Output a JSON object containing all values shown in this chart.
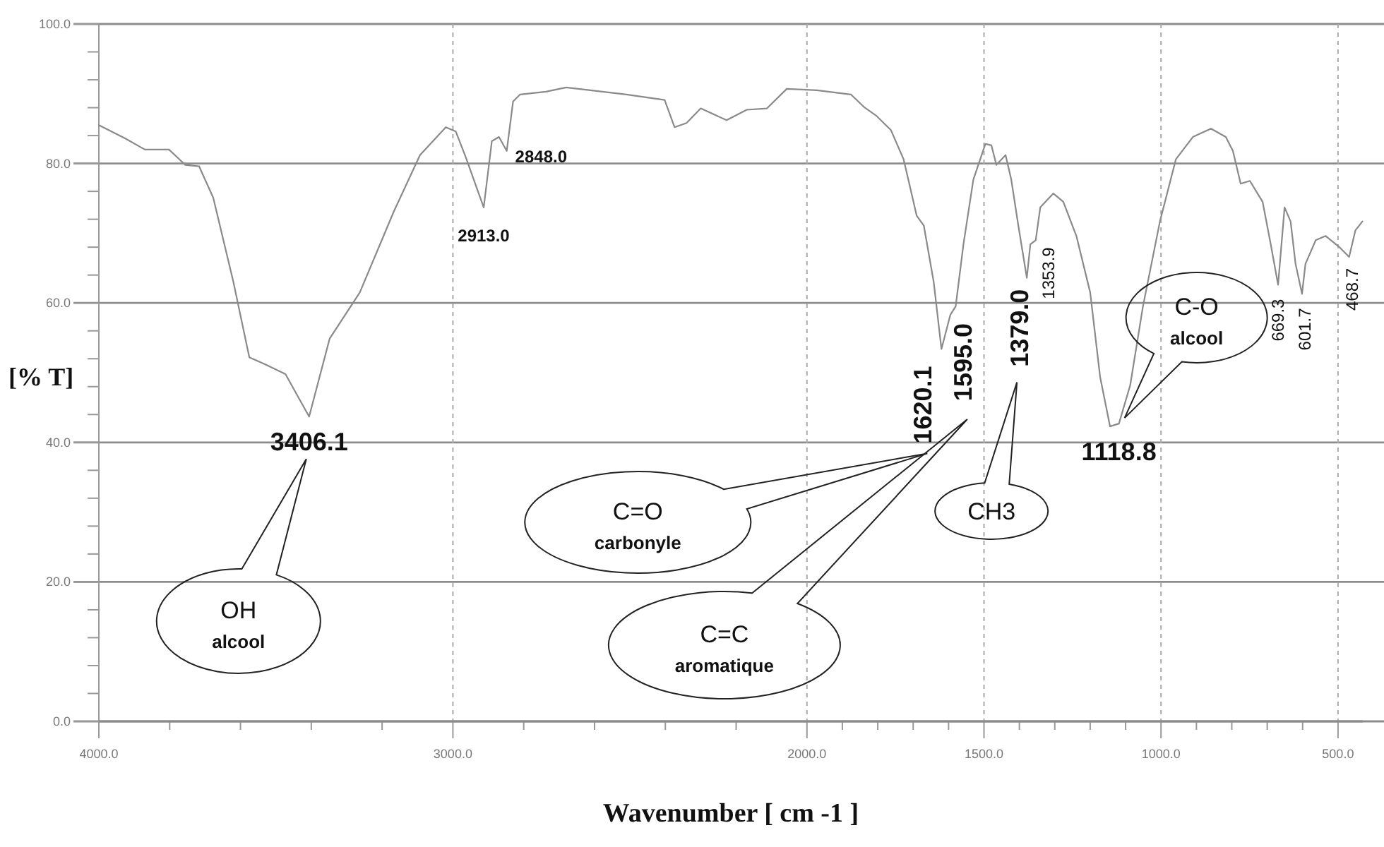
{
  "chart_data": {
    "type": "line",
    "xlabel": "Wavenumber [ cm -1 ]",
    "ylabel": "[% T]",
    "grid": true,
    "xlim": [
      4000,
      430
    ],
    "ylim": [
      0,
      100
    ],
    "xticks": [
      {
        "value": 4000,
        "label": "4000.0"
      },
      {
        "value": 3800,
        "label": null
      },
      {
        "value": 3600,
        "label": null
      },
      {
        "value": 3400,
        "label": null
      },
      {
        "value": 3200,
        "label": null
      },
      {
        "value": 3000,
        "label": "3000.0"
      },
      {
        "value": 2800,
        "label": null
      },
      {
        "value": 2600,
        "label": null
      },
      {
        "value": 2400,
        "label": null
      },
      {
        "value": 2200,
        "label": null
      },
      {
        "value": 2000,
        "label": "2000.0"
      },
      {
        "value": 1900,
        "label": null
      },
      {
        "value": 1800,
        "label": null
      },
      {
        "value": 1700,
        "label": null
      },
      {
        "value": 1600,
        "label": null
      },
      {
        "value": 1500,
        "label": "1500.0"
      },
      {
        "value": 1400,
        "label": null
      },
      {
        "value": 1300,
        "label": null
      },
      {
        "value": 1200,
        "label": null
      },
      {
        "value": 1100,
        "label": null
      },
      {
        "value": 1000,
        "label": "1000.0"
      },
      {
        "value": 900,
        "label": null
      },
      {
        "value": 800,
        "label": null
      },
      {
        "value": 700,
        "label": null
      },
      {
        "value": 600,
        "label": null
      },
      {
        "value": 500,
        "label": "500.0"
      }
    ],
    "yticks": [
      {
        "value": 0,
        "label": "0.0"
      },
      {
        "value": 4,
        "label": null
      },
      {
        "value": 8,
        "label": null
      },
      {
        "value": 12,
        "label": null
      },
      {
        "value": 16,
        "label": null
      },
      {
        "value": 20,
        "label": "20.0"
      },
      {
        "value": 24,
        "label": null
      },
      {
        "value": 28,
        "label": null
      },
      {
        "value": 32,
        "label": null
      },
      {
        "value": 36,
        "label": null
      },
      {
        "value": 40,
        "label": "40.0"
      },
      {
        "value": 44,
        "label": null
      },
      {
        "value": 48,
        "label": null
      },
      {
        "value": 52,
        "label": null
      },
      {
        "value": 56,
        "label": null
      },
      {
        "value": 60,
        "label": "60.0"
      },
      {
        "value": 64,
        "label": null
      },
      {
        "value": 68,
        "label": null
      },
      {
        "value": 72,
        "label": null
      },
      {
        "value": 76,
        "label": null
      },
      {
        "value": 80,
        "label": "80.0"
      },
      {
        "value": 84,
        "label": null
      },
      {
        "value": 88,
        "label": null
      },
      {
        "value": 92,
        "label": null
      },
      {
        "value": 96,
        "label": null
      },
      {
        "value": 100,
        "label": "100.0"
      }
    ],
    "series": [
      {
        "color": "#8a8a8a",
        "x": [
          4000,
          3926,
          3870,
          3802,
          3756,
          3717,
          3677,
          3620,
          3575,
          3530,
          3473,
          3406.1,
          3348,
          3263,
          3167,
          3093,
          3020,
          2992,
          2963,
          2913,
          2890,
          2870,
          2848,
          2830,
          2810,
          2737,
          2680,
          2510,
          2402,
          2374,
          2340,
          2300,
          2227,
          2170,
          2113,
          2057,
          1972,
          1876,
          1839,
          1803,
          1763,
          1727,
          1690,
          1670,
          1642,
          1620.1,
          1595,
          1580,
          1558,
          1530,
          1496,
          1479,
          1465,
          1439,
          1423,
          1403,
          1379,
          1369,
          1353.9,
          1341,
          1304,
          1276,
          1239,
          1200,
          1172,
          1144,
          1118.8,
          1087,
          1051,
          1003,
          958,
          910,
          859,
          817,
          797,
          775,
          749,
          713,
          690,
          669.3,
          651,
          634,
          620,
          601.7,
          592,
          563,
          535,
          496,
          468.7,
          451,
          431
        ],
        "values": [
          85.5,
          83.6,
          82.0,
          82.0,
          79.8,
          79.6,
          75.1,
          63.0,
          52.2,
          51.2,
          49.8,
          43.7,
          54.9,
          61.5,
          73.1,
          81.2,
          85.2,
          84.6,
          80.8,
          73.7,
          83.2,
          83.8,
          81.8,
          88.9,
          89.9,
          90.3,
          90.9,
          89.9,
          89.1,
          85.2,
          85.8,
          87.9,
          86.2,
          87.7,
          87.9,
          90.7,
          90.5,
          89.9,
          88.1,
          86.8,
          84.8,
          80.6,
          72.5,
          71.1,
          63.0,
          53.4,
          58.3,
          59.5,
          68.4,
          77.7,
          82.8,
          82.6,
          79.8,
          81.2,
          77.7,
          71.1,
          63.6,
          68.4,
          69.0,
          73.7,
          75.7,
          74.5,
          69.6,
          61.5,
          49.4,
          42.3,
          42.7,
          48.2,
          59.5,
          71.7,
          80.6,
          83.8,
          85.0,
          83.8,
          81.8,
          77.1,
          77.5,
          74.5,
          68.4,
          62.6,
          73.7,
          71.7,
          65.6,
          61.3,
          65.6,
          69.0,
          69.6,
          68.0,
          66.6,
          70.4,
          71.7
        ]
      }
    ],
    "annotations": [
      {
        "text": "3406.1",
        "x": 3406.1,
        "y": 43.7
      },
      {
        "text": "2913.0",
        "x": 2913,
        "y": 73.7
      },
      {
        "text": "2848.0",
        "x": 2848,
        "y": 81.8
      },
      {
        "text": "1620.1",
        "x": 1620.1,
        "y": 53.4
      },
      {
        "text": "1595.0",
        "x": 1595,
        "y": 58.3
      },
      {
        "text": "1379.0",
        "x": 1379,
        "y": 63.6
      },
      {
        "text": "1353.9",
        "x": 1353.9,
        "y": 69.0
      },
      {
        "text": "1118.8",
        "x": 1118.8,
        "y": 42.7
      },
      {
        "text": "669.3",
        "x": 669.3,
        "y": 62.6
      },
      {
        "text": "601.7",
        "x": 601.7,
        "y": 61.3
      },
      {
        "text": "468.7",
        "x": 468.7,
        "y": 66.6
      },
      "OH\nalcool",
      "C=O\ncarbonyle",
      "C=C\naromatique",
      "CH3",
      "C-O\nalcool"
    ]
  }
}
